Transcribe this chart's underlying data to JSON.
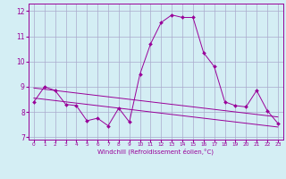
{
  "hours": [
    0,
    1,
    2,
    3,
    4,
    5,
    6,
    7,
    8,
    9,
    10,
    11,
    12,
    13,
    14,
    15,
    16,
    17,
    18,
    19,
    20,
    21,
    22,
    23
  ],
  "windchill": [
    8.4,
    9.0,
    8.85,
    8.3,
    8.25,
    7.65,
    7.75,
    7.45,
    8.15,
    7.6,
    9.5,
    10.7,
    11.55,
    11.85,
    11.75,
    11.75,
    10.35,
    9.8,
    8.4,
    8.25,
    8.2,
    8.85,
    8.05,
    7.55
  ],
  "trend_upper": [
    8.95,
    8.9,
    8.85,
    8.8,
    8.75,
    8.7,
    8.65,
    8.6,
    8.55,
    8.5,
    8.45,
    8.4,
    8.35,
    8.3,
    8.25,
    8.2,
    8.15,
    8.1,
    8.05,
    8.0,
    7.95,
    7.9,
    7.85,
    7.8
  ],
  "trend_lower": [
    8.55,
    8.5,
    8.45,
    8.4,
    8.35,
    8.3,
    8.25,
    8.2,
    8.15,
    8.1,
    8.05,
    8.0,
    7.95,
    7.9,
    7.85,
    7.8,
    7.75,
    7.7,
    7.65,
    7.6,
    7.55,
    7.5,
    7.45,
    7.4
  ],
  "color": "#990099",
  "bg_color": "#d4eef4",
  "grid_color": "#aaaacc",
  "xlabel": "Windchill (Refroidissement éolien,°C)",
  "ylabel_ticks": [
    7,
    8,
    9,
    10,
    11,
    12
  ],
  "xlim": [
    -0.5,
    23.5
  ],
  "ylim": [
    6.9,
    12.3
  ],
  "figsize": [
    3.2,
    2.0
  ],
  "dpi": 100
}
